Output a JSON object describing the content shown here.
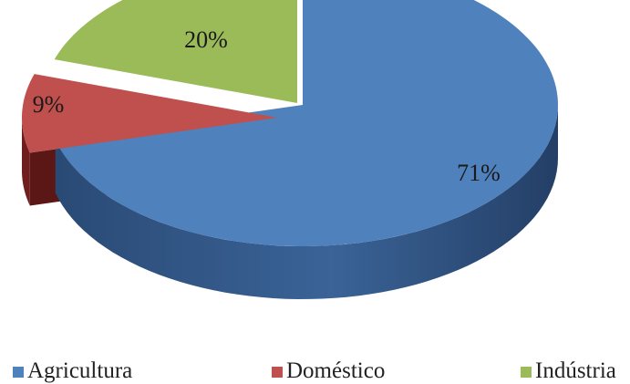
{
  "chart_data": {
    "type": "pie",
    "style": "3d-exploded",
    "legend_position": "bottom",
    "slices": [
      {
        "name": "Agricultura",
        "value": 71,
        "label": "71%",
        "color": "#4F81BD",
        "side_color": "#2E4F7A"
      },
      {
        "name": "Doméstico",
        "value": 9,
        "label": "9%",
        "color": "#C0504D",
        "side_color": "#6E1E1C"
      },
      {
        "name": "Indústria",
        "value": 20,
        "label": "20%",
        "color": "#9BBB59",
        "side_color": "#5E7A2E"
      }
    ]
  }
}
